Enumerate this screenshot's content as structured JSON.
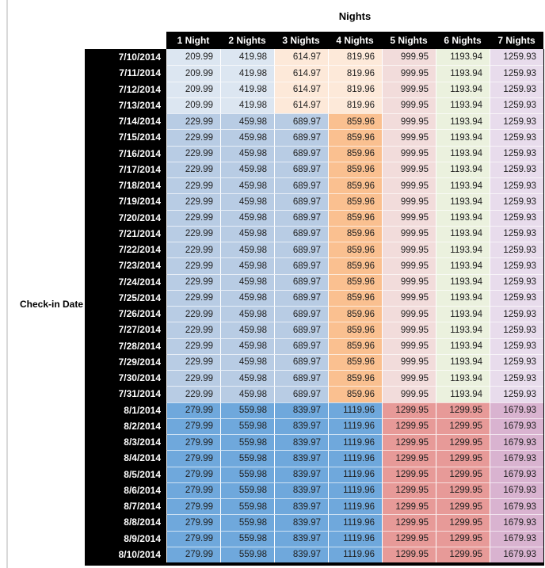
{
  "title": "Nights",
  "row_axis_label": "Check-in Date",
  "columns": [
    "1 Night",
    "2 Nights",
    "3 Nights",
    "4 Nights",
    "5 Nights",
    "6 Nights",
    "7 Nights"
  ],
  "colors": {
    "header_bg": "#000000",
    "header_text": "#ffffff",
    "light_blue": "#dce6f1",
    "cream": "#fde9d9",
    "medium_blue": "#b8cce4",
    "orange": "#fac090",
    "dark_blue": "#6fa8dc",
    "light_pink": "#f2dcdb",
    "light_green": "#ebf1de",
    "light_lavender": "#e8dcec",
    "salmon": "#e79a98",
    "mauve": "#d9b3d0"
  },
  "bands": {
    "early_july": {
      "values": [
        "209.99",
        "419.98",
        "614.97",
        "819.96",
        "999.95",
        "1193.94",
        "1259.93"
      ],
      "cell_colors": [
        "#dce6f1",
        "#dce6f1",
        "#fde9d9",
        "#fde9d9",
        "#f2dcdb",
        "#ebf1de",
        "#e8dcec"
      ]
    },
    "mid_july": {
      "values": [
        "229.99",
        "459.98",
        "689.97",
        "859.96",
        "999.95",
        "1193.94",
        "1259.93"
      ],
      "cell_colors": [
        "#b8cce4",
        "#b8cce4",
        "#b8cce4",
        "#fac090",
        "#f2dcdb",
        "#ebf1de",
        "#e8dcec"
      ]
    },
    "august": {
      "values": [
        "279.99",
        "559.98",
        "839.97",
        "1119.96",
        "1299.95",
        "1299.95",
        "1679.93"
      ],
      "cell_colors": [
        "#6fa8dc",
        "#6fa8dc",
        "#6fa8dc",
        "#6fa8dc",
        "#e79a98",
        "#e79a98",
        "#d9b3d0"
      ]
    }
  },
  "rows": [
    {
      "date": "7/10/2014",
      "band": "early_july"
    },
    {
      "date": "7/11/2014",
      "band": "early_july"
    },
    {
      "date": "7/12/2014",
      "band": "early_july"
    },
    {
      "date": "7/13/2014",
      "band": "early_july"
    },
    {
      "date": "7/14/2014",
      "band": "mid_july"
    },
    {
      "date": "7/15/2014",
      "band": "mid_july"
    },
    {
      "date": "7/16/2014",
      "band": "mid_july"
    },
    {
      "date": "7/17/2014",
      "band": "mid_july"
    },
    {
      "date": "7/18/2014",
      "band": "mid_july"
    },
    {
      "date": "7/19/2014",
      "band": "mid_july"
    },
    {
      "date": "7/20/2014",
      "band": "mid_july"
    },
    {
      "date": "7/21/2014",
      "band": "mid_july"
    },
    {
      "date": "7/22/2014",
      "band": "mid_july"
    },
    {
      "date": "7/23/2014",
      "band": "mid_july"
    },
    {
      "date": "7/24/2014",
      "band": "mid_july"
    },
    {
      "date": "7/25/2014",
      "band": "mid_july"
    },
    {
      "date": "7/26/2014",
      "band": "mid_july"
    },
    {
      "date": "7/27/2014",
      "band": "mid_july"
    },
    {
      "date": "7/28/2014",
      "band": "mid_july"
    },
    {
      "date": "7/29/2014",
      "band": "mid_july"
    },
    {
      "date": "7/30/2014",
      "band": "mid_july"
    },
    {
      "date": "7/31/2014",
      "band": "mid_july"
    },
    {
      "date": "8/1/2014",
      "band": "august"
    },
    {
      "date": "8/2/2014",
      "band": "august"
    },
    {
      "date": "8/3/2014",
      "band": "august"
    },
    {
      "date": "8/4/2014",
      "band": "august"
    },
    {
      "date": "8/5/2014",
      "band": "august"
    },
    {
      "date": "8/6/2014",
      "band": "august"
    },
    {
      "date": "8/7/2014",
      "band": "august"
    },
    {
      "date": "8/8/2014",
      "band": "august"
    },
    {
      "date": "8/9/2014",
      "band": "august"
    },
    {
      "date": "8/10/2014",
      "band": "august"
    }
  ],
  "chart_data": {
    "type": "table",
    "title": "Nights",
    "row_label": "Check-in Date",
    "columns": [
      "1 Night",
      "2 Nights",
      "3 Nights",
      "4 Nights",
      "5 Nights",
      "6 Nights",
      "7 Nights"
    ],
    "rows": [
      {
        "date": "7/10/2014",
        "values": [
          209.99,
          419.98,
          614.97,
          819.96,
          999.95,
          1193.94,
          1259.93
        ]
      },
      {
        "date": "7/11/2014",
        "values": [
          209.99,
          419.98,
          614.97,
          819.96,
          999.95,
          1193.94,
          1259.93
        ]
      },
      {
        "date": "7/12/2014",
        "values": [
          209.99,
          419.98,
          614.97,
          819.96,
          999.95,
          1193.94,
          1259.93
        ]
      },
      {
        "date": "7/13/2014",
        "values": [
          209.99,
          419.98,
          614.97,
          819.96,
          999.95,
          1193.94,
          1259.93
        ]
      },
      {
        "date": "7/14/2014",
        "values": [
          229.99,
          459.98,
          689.97,
          859.96,
          999.95,
          1193.94,
          1259.93
        ]
      },
      {
        "date": "7/15/2014",
        "values": [
          229.99,
          459.98,
          689.97,
          859.96,
          999.95,
          1193.94,
          1259.93
        ]
      },
      {
        "date": "7/16/2014",
        "values": [
          229.99,
          459.98,
          689.97,
          859.96,
          999.95,
          1193.94,
          1259.93
        ]
      },
      {
        "date": "7/17/2014",
        "values": [
          229.99,
          459.98,
          689.97,
          859.96,
          999.95,
          1193.94,
          1259.93
        ]
      },
      {
        "date": "7/18/2014",
        "values": [
          229.99,
          459.98,
          689.97,
          859.96,
          999.95,
          1193.94,
          1259.93
        ]
      },
      {
        "date": "7/19/2014",
        "values": [
          229.99,
          459.98,
          689.97,
          859.96,
          999.95,
          1193.94,
          1259.93
        ]
      },
      {
        "date": "7/20/2014",
        "values": [
          229.99,
          459.98,
          689.97,
          859.96,
          999.95,
          1193.94,
          1259.93
        ]
      },
      {
        "date": "7/21/2014",
        "values": [
          229.99,
          459.98,
          689.97,
          859.96,
          999.95,
          1193.94,
          1259.93
        ]
      },
      {
        "date": "7/22/2014",
        "values": [
          229.99,
          459.98,
          689.97,
          859.96,
          999.95,
          1193.94,
          1259.93
        ]
      },
      {
        "date": "7/23/2014",
        "values": [
          229.99,
          459.98,
          689.97,
          859.96,
          999.95,
          1193.94,
          1259.93
        ]
      },
      {
        "date": "7/24/2014",
        "values": [
          229.99,
          459.98,
          689.97,
          859.96,
          999.95,
          1193.94,
          1259.93
        ]
      },
      {
        "date": "7/25/2014",
        "values": [
          229.99,
          459.98,
          689.97,
          859.96,
          999.95,
          1193.94,
          1259.93
        ]
      },
      {
        "date": "7/26/2014",
        "values": [
          229.99,
          459.98,
          689.97,
          859.96,
          999.95,
          1193.94,
          1259.93
        ]
      },
      {
        "date": "7/27/2014",
        "values": [
          229.99,
          459.98,
          689.97,
          859.96,
          999.95,
          1193.94,
          1259.93
        ]
      },
      {
        "date": "7/28/2014",
        "values": [
          229.99,
          459.98,
          689.97,
          859.96,
          999.95,
          1193.94,
          1259.93
        ]
      },
      {
        "date": "7/29/2014",
        "values": [
          229.99,
          459.98,
          689.97,
          859.96,
          999.95,
          1193.94,
          1259.93
        ]
      },
      {
        "date": "7/30/2014",
        "values": [
          229.99,
          459.98,
          689.97,
          859.96,
          999.95,
          1193.94,
          1259.93
        ]
      },
      {
        "date": "7/31/2014",
        "values": [
          229.99,
          459.98,
          689.97,
          859.96,
          999.95,
          1193.94,
          1259.93
        ]
      },
      {
        "date": "8/1/2014",
        "values": [
          279.99,
          559.98,
          839.97,
          1119.96,
          1299.95,
          1299.95,
          1679.93
        ]
      },
      {
        "date": "8/2/2014",
        "values": [
          279.99,
          559.98,
          839.97,
          1119.96,
          1299.95,
          1299.95,
          1679.93
        ]
      },
      {
        "date": "8/3/2014",
        "values": [
          279.99,
          559.98,
          839.97,
          1119.96,
          1299.95,
          1299.95,
          1679.93
        ]
      },
      {
        "date": "8/4/2014",
        "values": [
          279.99,
          559.98,
          839.97,
          1119.96,
          1299.95,
          1299.95,
          1679.93
        ]
      },
      {
        "date": "8/5/2014",
        "values": [
          279.99,
          559.98,
          839.97,
          1119.96,
          1299.95,
          1299.95,
          1679.93
        ]
      },
      {
        "date": "8/6/2014",
        "values": [
          279.99,
          559.98,
          839.97,
          1119.96,
          1299.95,
          1299.95,
          1679.93
        ]
      },
      {
        "date": "8/7/2014",
        "values": [
          279.99,
          559.98,
          839.97,
          1119.96,
          1299.95,
          1299.95,
          1679.93
        ]
      },
      {
        "date": "8/8/2014",
        "values": [
          279.99,
          559.98,
          839.97,
          1119.96,
          1299.95,
          1299.95,
          1679.93
        ]
      },
      {
        "date": "8/9/2014",
        "values": [
          279.99,
          559.98,
          839.97,
          1119.96,
          1299.95,
          1299.95,
          1679.93
        ]
      },
      {
        "date": "8/10/2014",
        "values": [
          279.99,
          559.98,
          839.97,
          1119.96,
          1299.95,
          1299.95,
          1679.93
        ]
      }
    ]
  }
}
